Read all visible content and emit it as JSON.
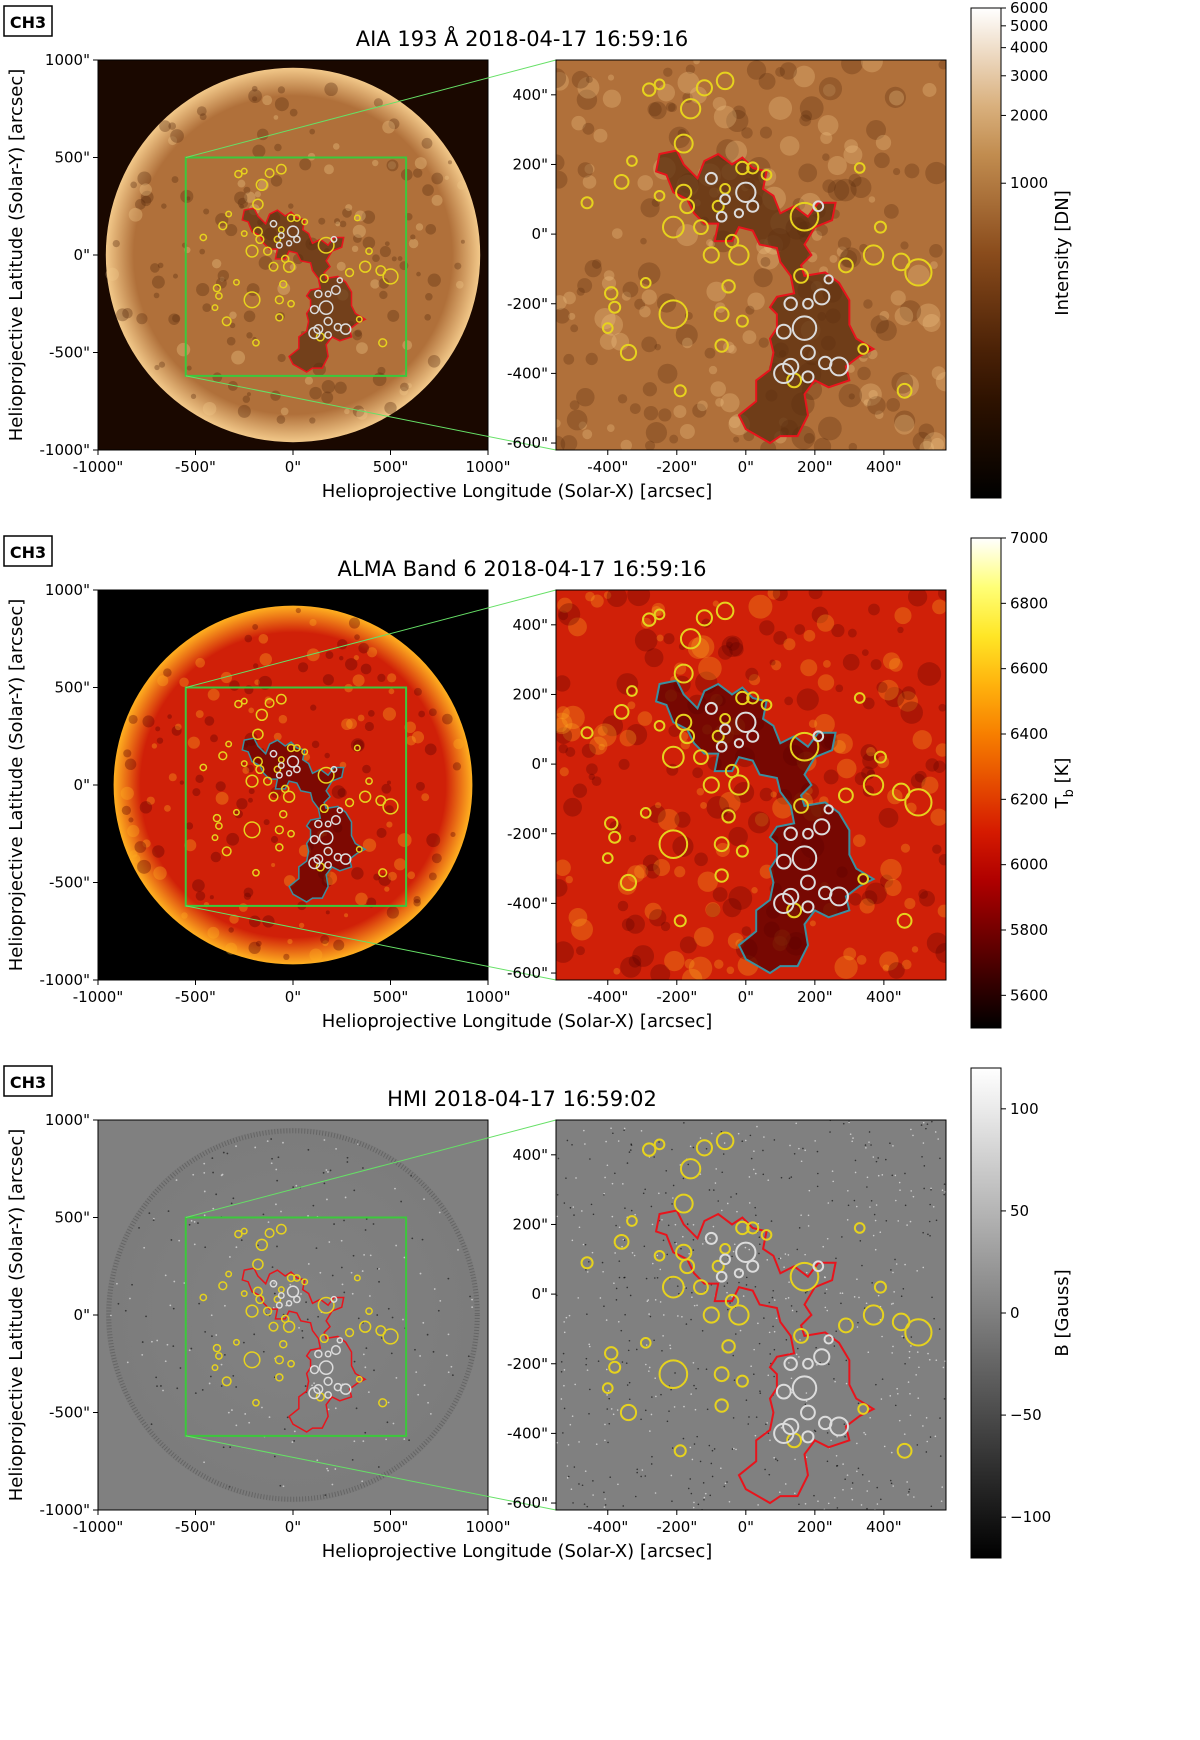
{
  "figure": {
    "panels": [
      {
        "tag": "CH3",
        "title": "AIA 193 Å 2018-04-17 16:59:16",
        "instrument": "AIA",
        "colorbar": {
          "label": "Intensity [DN]",
          "scale": "log",
          "ticks": [
            "6000",
            "5000",
            "4000",
            "3000",
            "2000",
            "1000"
          ],
          "tick_values": [
            6000,
            5000,
            4000,
            3000,
            2000,
            1000
          ],
          "range": [
            40,
            6000
          ],
          "colormap": "sdoaia193"
        },
        "contour_color": "#e8141c",
        "palette": {
          "bg": "#1a0800",
          "disk_hi": "#f2c889",
          "disk": "#b0703a",
          "disk_lo": "#5a2c0e"
        }
      },
      {
        "tag": "CH3",
        "title": "ALMA Band 6 2018-04-17 16:59:16",
        "instrument": "ALMA",
        "colorbar": {
          "label": "T_b [K]",
          "label_main": "T",
          "label_sub": "b",
          "label_unit": " [K]",
          "scale": "linear",
          "ticks": [
            "7000",
            "6800",
            "6600",
            "6400",
            "6200",
            "6000",
            "5800",
            "5600"
          ],
          "tick_values": [
            7000,
            6800,
            6600,
            6400,
            6200,
            6000,
            5800,
            5600
          ],
          "range": [
            5500,
            7000
          ],
          "colormap": "hot"
        },
        "contour_color": "#3a8fa0",
        "palette": {
          "bg": "#000000",
          "disk_hi": "#ffb020",
          "disk": "#d02008",
          "disk_lo": "#5a0000"
        }
      },
      {
        "tag": "CH3",
        "title": "HMI 2018-04-17 16:59:02",
        "instrument": "HMI",
        "colorbar": {
          "label": "B [Gauss]",
          "scale": "linear",
          "ticks": [
            "100",
            "50",
            "0",
            "−50",
            "−100"
          ],
          "tick_values": [
            100,
            50,
            0,
            -50,
            -100
          ],
          "range": [
            -120,
            120
          ],
          "colormap": "gray"
        },
        "contour_color": "#e8141c",
        "palette": {
          "bg": "#808080",
          "disk_hi": "#9a9a9a",
          "disk": "#808080",
          "disk_lo": "#666666"
        }
      }
    ],
    "full_disk_axes": {
      "xlabel": "Helioprojective Longitude (Solar-X) [arcsec]",
      "ylabel": "Helioprojective Latitude (Solar-Y) [arcsec]",
      "xticks": [
        "-1000\"",
        "-500\"",
        "0\"",
        "500\"",
        "1000\""
      ],
      "yticks": [
        "1000\"",
        "500\"",
        "0\"",
        "-500\"",
        "-1000\""
      ],
      "range": [
        -1000,
        1000
      ]
    },
    "zoom_axes": {
      "xticks": [
        "-400\"",
        "-200\"",
        "0\"",
        "200\"",
        "400\""
      ],
      "yticks": [
        "400\"",
        "200\"",
        "0\"",
        "-200\"",
        "-400\"",
        "-600\""
      ],
      "xrange": [
        -550,
        580
      ],
      "yrange": [
        -620,
        500
      ]
    },
    "box_color": "#3cc83c",
    "circle_colors": {
      "yellow": "#e6d21e",
      "white": "#dcdcdc"
    }
  }
}
